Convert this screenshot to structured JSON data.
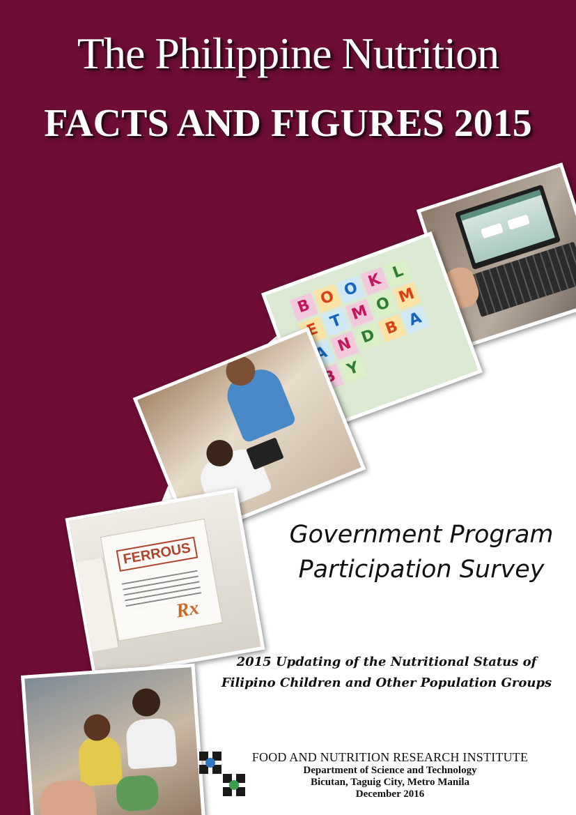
{
  "cover": {
    "title_line1": "The Philippine Nutrition",
    "title_line2": "FACTS AND FIGURES 2015",
    "survey_title_line1": "Government Program",
    "survey_title_line2": "Participation Survey",
    "subtitle_line1": "2015 Updating of the Nutritional Status of",
    "subtitle_line2": "Filipino Children and Other Population Groups",
    "background_color": "#6e0d36"
  },
  "photos": {
    "laptop": "laptop-photo",
    "blocks": "alphabet-blocks-photo",
    "interview": "interview-photo",
    "boxes": "medicine-boxes-photo",
    "children": "children-photo",
    "block_letters": [
      "B",
      "O",
      "O",
      "K",
      "L",
      "E",
      "T",
      "M",
      "O",
      "M",
      "A",
      "N",
      "D",
      "B",
      "A",
      "B",
      "Y"
    ],
    "box_label": "FERROUS",
    "box_mark": "Rx"
  },
  "institute": {
    "name": "FOOD AND NUTRITION RESEARCH INSTITUTE",
    "department": "Department of Science and Technology",
    "address": "Bicutan, Taguig City, Metro Manila",
    "date": "December 2016"
  }
}
